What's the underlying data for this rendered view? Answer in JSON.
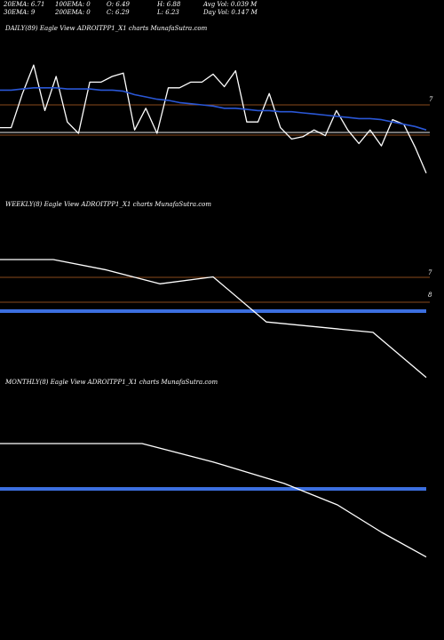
{
  "header": {
    "row1": [
      "20EMA: 6.71",
      "100EMA: 0",
      "O: 6.49",
      "H: 6.88",
      "Avg Vol: 0.039 M"
    ],
    "row2": [
      "30EMA: 9",
      "200EMA: 0",
      "C: 6.29",
      "L: 6.23",
      "Day Vol: 0.147 M"
    ]
  },
  "chart_data": [
    {
      "type": "line",
      "title": "DAILY(89) Eagle   View  ADROITPP1_X1 charts MunafaSutra.com",
      "yticks": [
        "7"
      ],
      "ylim": [
        5.9,
        7.6
      ],
      "series": [
        {
          "color": "#ffffff",
          "values": [
            6.8,
            6.8,
            7.1,
            7.35,
            6.95,
            7.25,
            6.85,
            6.75,
            7.2,
            7.2,
            7.25,
            7.28,
            6.78,
            6.97,
            6.75,
            7.15,
            7.15,
            7.2,
            7.2,
            7.27,
            7.16,
            7.3,
            6.85,
            6.85,
            7.1,
            6.8,
            6.7,
            6.72,
            6.78,
            6.73,
            6.95,
            6.78,
            6.66,
            6.78,
            6.64,
            6.87,
            6.83,
            6.63,
            6.4
          ]
        },
        {
          "color": "#2a57d6",
          "values": [
            7.13,
            7.13,
            7.14,
            7.15,
            7.15,
            7.15,
            7.14,
            7.14,
            7.14,
            7.13,
            7.13,
            7.12,
            7.09,
            7.07,
            7.05,
            7.04,
            7.02,
            7.01,
            7.0,
            6.99,
            6.97,
            6.97,
            6.96,
            6.95,
            6.95,
            6.94,
            6.94,
            6.93,
            6.92,
            6.91,
            6.9,
            6.89,
            6.88,
            6.88,
            6.87,
            6.85,
            6.83,
            6.81,
            6.78
          ]
        }
      ]
    },
    {
      "type": "line",
      "title": "WEEKLY(8) Eagle   View  ADROITPP1_X1 charts MunafaSutra.com",
      "yticks": [
        "7",
        "8"
      ],
      "series": [
        {
          "color": "#ffffff",
          "values": [
            7.2,
            7.2,
            7.05,
            6.85,
            6.95,
            6.3,
            6.15,
            5.5
          ]
        }
      ]
    },
    {
      "type": "line",
      "title": "MONTHLY(8) Eagle   View  ADROITPP1_X1 charts MunafaSutra.com",
      "yticks": [],
      "series": [
        {
          "color": "#ffffff",
          "values": [
            7.0,
            7.0,
            7.0,
            6.7,
            6.35,
            6.0,
            5.55,
            5.15
          ]
        }
      ]
    }
  ]
}
